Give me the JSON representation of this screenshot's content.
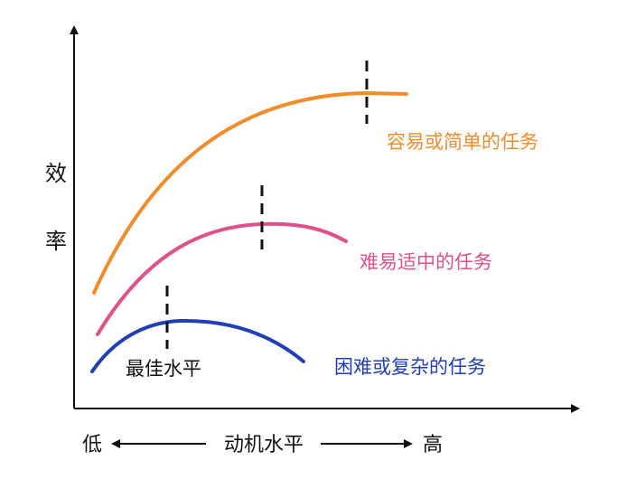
{
  "labels": {
    "y_axis": [
      "效",
      "率"
    ],
    "x_axis": "动机水平",
    "x_low": "低",
    "x_high": "高",
    "optimal": "最佳水平"
  },
  "curves": {
    "easy": {
      "label": "容易或简单的任务",
      "color": "#F28C28"
    },
    "medium": {
      "label": "难易适中的任务",
      "color": "#E0508A"
    },
    "hard": {
      "label": "困难或复杂的任务",
      "color": "#1F3FB8"
    }
  }
}
